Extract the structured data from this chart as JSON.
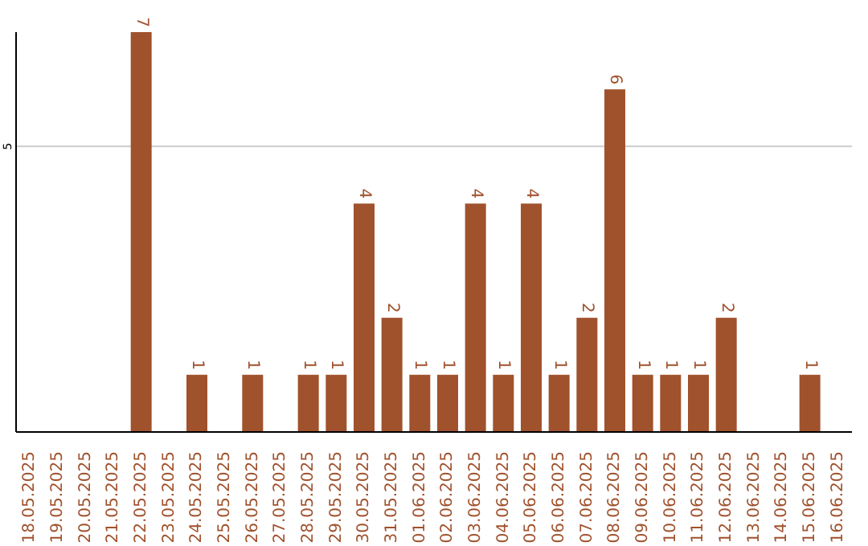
{
  "chart_data": {
    "type": "bar",
    "categories": [
      "18.05.2025",
      "19.05.2025",
      "20.05.2025",
      "21.05.2025",
      "22.05.2025",
      "23.05.2025",
      "24.05.2025",
      "25.05.2025",
      "26.05.2025",
      "27.05.2025",
      "28.05.2025",
      "29.05.2025",
      "30.05.2025",
      "31.05.2025",
      "01.06.2025",
      "02.06.2025",
      "03.06.2025",
      "04.06.2025",
      "05.06.2025",
      "06.06.2025",
      "07.06.2025",
      "08.06.2025",
      "09.06.2025",
      "10.06.2025",
      "11.06.2025",
      "12.06.2025",
      "13.06.2025",
      "14.06.2025",
      "15.06.2025",
      "16.06.2025"
    ],
    "values": [
      0,
      0,
      0,
      0,
      7,
      0,
      1,
      0,
      1,
      0,
      1,
      1,
      4,
      2,
      1,
      1,
      4,
      1,
      4,
      1,
      2,
      6,
      1,
      1,
      1,
      2,
      0,
      0,
      1,
      0
    ],
    "value_labels": [
      null,
      null,
      null,
      null,
      "7",
      null,
      "1",
      null,
      "1",
      null,
      "1",
      "1",
      "4",
      "2",
      "1",
      "1",
      "4",
      "1",
      "4",
      "1",
      "2",
      "6",
      "1",
      "1",
      "1",
      "2",
      null,
      null,
      "1",
      null
    ],
    "color": "#a0522d",
    "ylim": [
      0,
      7
    ],
    "yticks": [
      {
        "value": 0,
        "label": null
      },
      5
    ],
    "grid": "y"
  }
}
